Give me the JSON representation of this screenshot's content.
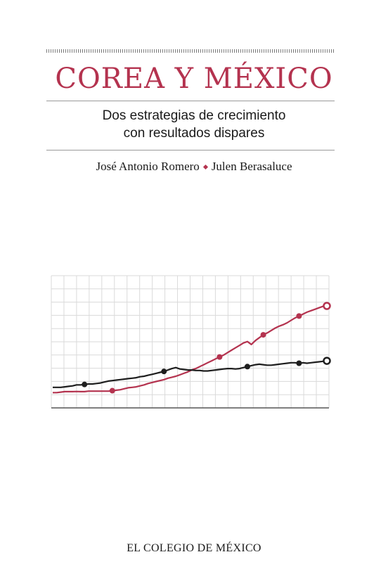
{
  "cover": {
    "title": "COREA Y MÉXICO",
    "subtitle_line1": "Dos estrategias de crecimiento",
    "subtitle_line2": "con resultados dispares",
    "author1": "José Antonio Romero",
    "author2": "Julen Berasaluce",
    "publisher": "EL COLEGIO DE MÉXICO"
  },
  "chart_data": {
    "type": "line",
    "title": "",
    "xlabel": "",
    "ylabel": "",
    "grid": true,
    "legend": "none",
    "x": [
      0,
      1,
      2,
      3,
      4,
      5,
      6,
      7,
      8,
      9,
      10,
      11,
      12,
      13,
      14,
      15,
      16,
      17,
      18,
      19,
      20,
      21,
      22,
      23,
      24,
      25,
      26,
      27,
      28,
      29,
      30,
      31,
      32,
      33,
      34,
      35,
      36,
      37,
      38,
      39,
      40,
      41,
      42,
      43,
      44,
      45,
      46,
      47,
      48,
      49,
      50,
      51,
      52,
      53,
      54,
      55,
      56,
      57,
      58,
      59,
      60,
      61,
      62,
      63,
      64,
      65,
      66,
      67,
      68,
      69
    ],
    "ylim": [
      0,
      100
    ],
    "xlim": [
      0,
      69
    ],
    "series": [
      {
        "name": "",
        "color": "#b4334f",
        "values": [
          10,
          10,
          10.5,
          11,
          11,
          11,
          11.2,
          11,
          11,
          11.5,
          11.5,
          11.5,
          11.5,
          11.5,
          11.5,
          12,
          12.5,
          13,
          14,
          15,
          15.5,
          16,
          17,
          18,
          19.5,
          20.5,
          21.5,
          22.5,
          23.5,
          25,
          26,
          27,
          28.5,
          30,
          31.5,
          33.5,
          35,
          37,
          39,
          41,
          43,
          45,
          47,
          49,
          51.5,
          54,
          56.5,
          59,
          61.5,
          63,
          60,
          64,
          67,
          70,
          72,
          74.5,
          77,
          79,
          80.5,
          82.5,
          85,
          87.5,
          89.5,
          91.5,
          93.5,
          95,
          96.5,
          98,
          99.5,
          100
        ],
        "markers": [
          15,
          42,
          53,
          62,
          69
        ]
      },
      {
        "name": "",
        "color": "#1e1e1e",
        "values": [
          15.5,
          15.5,
          15.5,
          16,
          16.5,
          17,
          18,
          18,
          18.5,
          19,
          19,
          19.5,
          20,
          21,
          22,
          22.5,
          23,
          23.5,
          24,
          24.5,
          25,
          25.5,
          26.5,
          27,
          28,
          29,
          30,
          31,
          32,
          33.5,
          35,
          36,
          34.5,
          34,
          33.5,
          33.5,
          33,
          33,
          32.5,
          32.5,
          33,
          33.5,
          34,
          34.5,
          35,
          35,
          34.5,
          35,
          36,
          37,
          38,
          39,
          39.5,
          39,
          38.5,
          38.5,
          39,
          39.5,
          40,
          40.5,
          41,
          41,
          40.5,
          41,
          40.5,
          41,
          41.5,
          42,
          42.5,
          43
        ],
        "markers": [
          8,
          28,
          49,
          62,
          69
        ]
      }
    ]
  }
}
